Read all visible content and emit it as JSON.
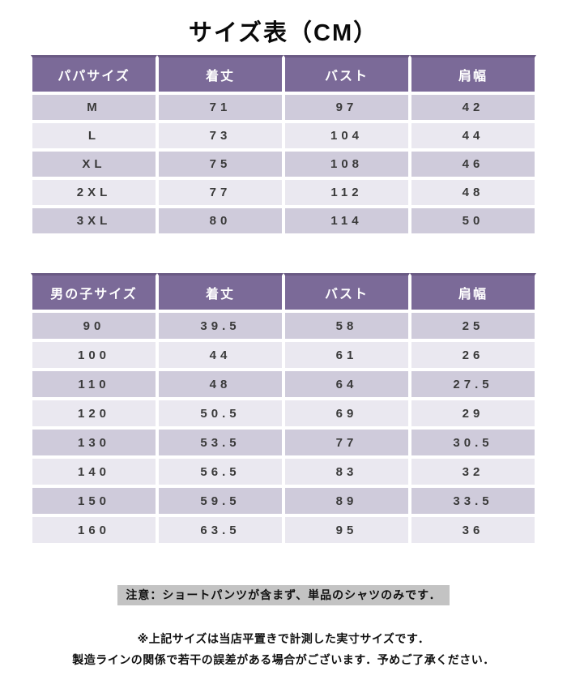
{
  "page": {
    "title": "サイズ表（CM）"
  },
  "colors": {
    "header_bg": "#7b6a98",
    "header_top_border": "#6a5a84",
    "header_text": "#ffffff",
    "row_odd_bg": "#cfcbdb",
    "row_even_bg": "#eae8f0",
    "cell_text": "#3a3a3a",
    "note_highlight_bg": "#c3c3c3",
    "page_bg": "#ffffff"
  },
  "tables": [
    {
      "name": "パパサイズ表",
      "headers": [
        "パパサイズ",
        "着丈",
        "バスト",
        "肩幅"
      ],
      "rows": [
        [
          "M",
          "71",
          "97",
          "42"
        ],
        [
          "L",
          "73",
          "104",
          "44"
        ],
        [
          "XL",
          "75",
          "108",
          "46"
        ],
        [
          "2XL",
          "77",
          "112",
          "48"
        ],
        [
          "3XL",
          "80",
          "114",
          "50"
        ]
      ]
    },
    {
      "name": "男の子サイズ表",
      "headers": [
        "男の子サイズ",
        "着丈",
        "バスト",
        "肩幅"
      ],
      "rows": [
        [
          "90",
          "39.5",
          "58",
          "25"
        ],
        [
          "100",
          "44",
          "61",
          "26"
        ],
        [
          "110",
          "48",
          "64",
          "27.5"
        ],
        [
          "120",
          "50.5",
          "69",
          "29"
        ],
        [
          "130",
          "53.5",
          "77",
          "30.5"
        ],
        [
          "140",
          "56.5",
          "83",
          "32"
        ],
        [
          "150",
          "59.5",
          "89",
          "33.5"
        ],
        [
          "160",
          "63.5",
          "95",
          "36"
        ]
      ]
    }
  ],
  "notes": {
    "highlighted": "注意：ショートパンツが含まず、単品のシャツのみです．",
    "line1": "※上記サイズは当店平置きで計測した実寸サイズです．",
    "line2": "製造ラインの関係で若干の誤差がある場合がございます．予めご了承ください．"
  }
}
